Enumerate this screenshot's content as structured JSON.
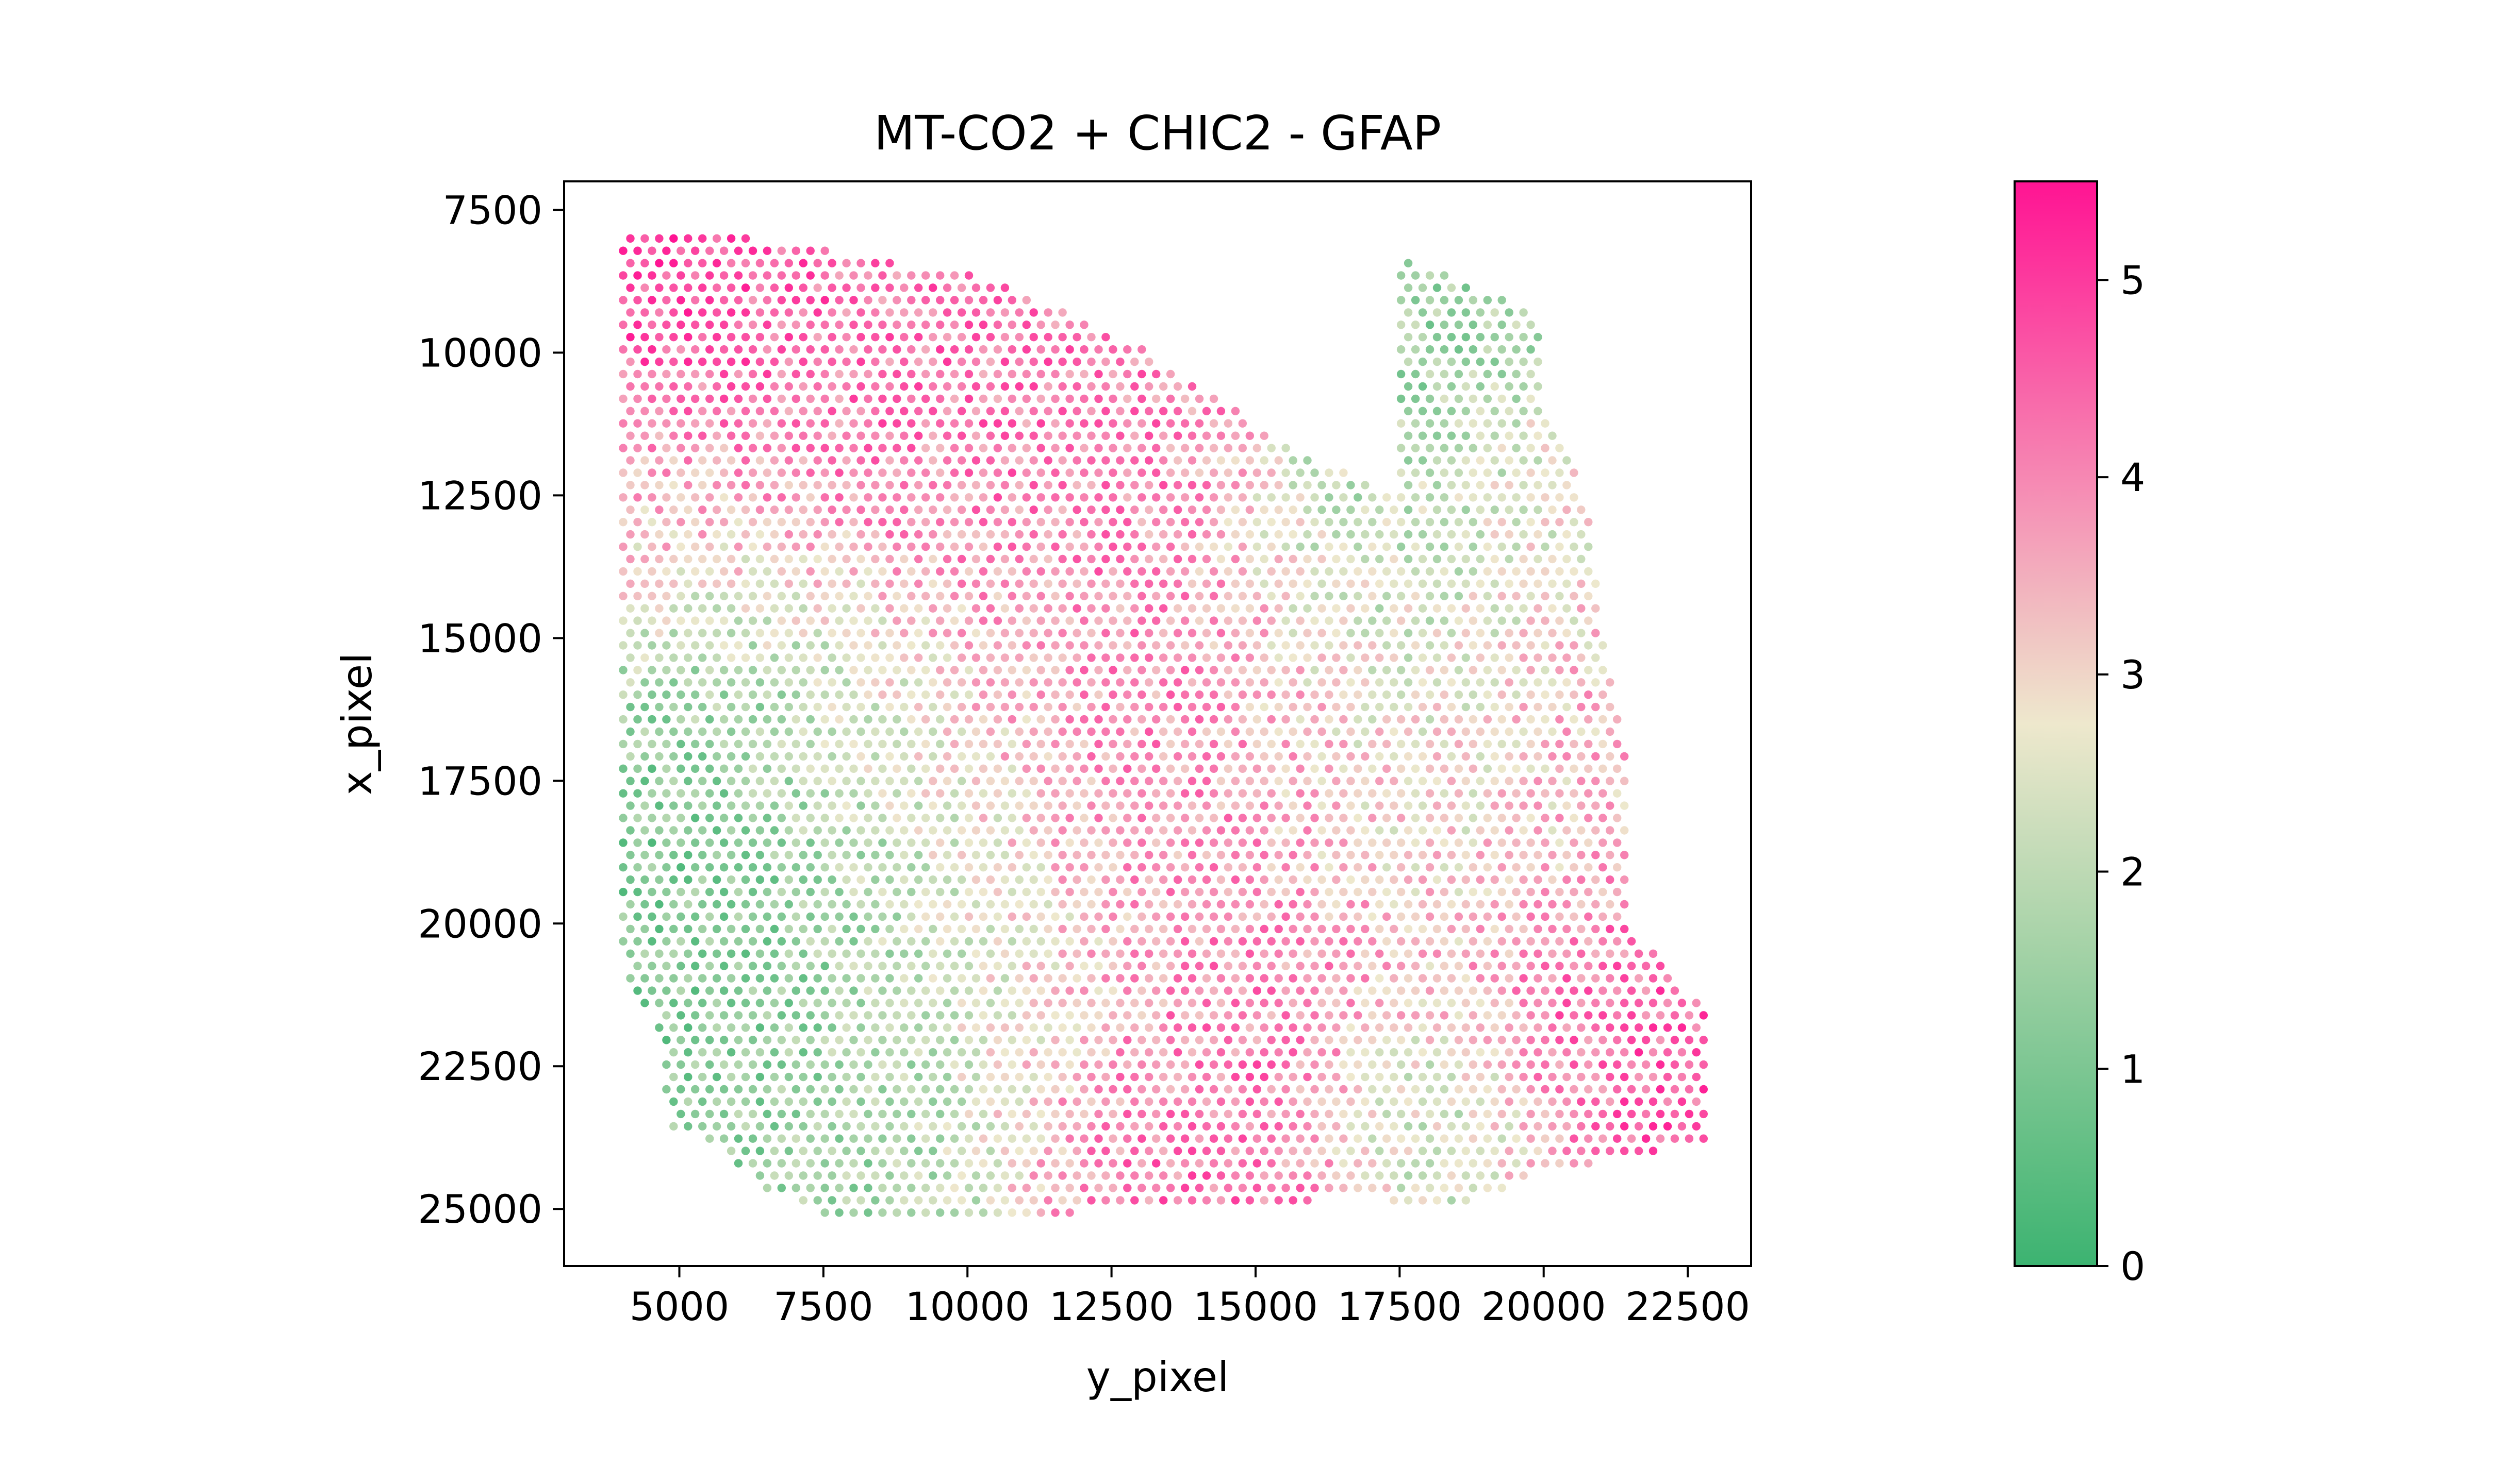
{
  "chart_data": {
    "type": "scatter",
    "title": "MT-CO2 + CHIC2 - GFAP",
    "xlabel": "y_pixel",
    "ylabel": "x_pixel",
    "xlim": [
      3000,
      23600
    ],
    "ylim": [
      26000,
      7000
    ],
    "y_inverted": true,
    "x_ticks": [
      5000,
      7500,
      10000,
      12500,
      15000,
      17500,
      20000,
      22500
    ],
    "x_tick_labels": [
      "5000",
      "7500",
      "10000",
      "12500",
      "15000",
      "17500",
      "20000",
      "22500"
    ],
    "y_ticks": [
      7500,
      10000,
      12500,
      15000,
      17500,
      20000,
      22500,
      25000
    ],
    "y_tick_labels": [
      "7500",
      "10000",
      "12500",
      "15000",
      "17500",
      "20000",
      "22500",
      "25000"
    ],
    "grid": false,
    "legend": "none",
    "colorbar": {
      "min": 0,
      "max": 5.5,
      "ticks": [
        0,
        1,
        2,
        3,
        4,
        5
      ],
      "tick_labels": [
        "0",
        "1",
        "2",
        "3",
        "4",
        "5"
      ],
      "colormap": [
        "#3cb371",
        "#eee8cd",
        "#ff1493"
      ],
      "colormap_midpoint": 2.75
    },
    "spot_grid": {
      "x_step": 250,
      "y_step": 216,
      "y_start": 8000,
      "outline": [
        [
          4000,
          8000
        ],
        [
          5800,
          7900
        ],
        [
          8000,
          8300
        ],
        [
          10000,
          8600
        ],
        [
          11500,
          9200
        ],
        [
          12800,
          9800
        ],
        [
          14100,
          10600
        ],
        [
          15200,
          11400
        ],
        [
          16300,
          12000
        ],
        [
          17100,
          12300
        ],
        [
          17500,
          12600
        ],
        [
          17400,
          8300
        ],
        [
          18300,
          8600
        ],
        [
          20000,
          9400
        ],
        [
          20000,
          10900
        ],
        [
          20400,
          11500
        ],
        [
          20800,
          13000
        ],
        [
          21000,
          14700
        ],
        [
          21400,
          16700
        ],
        [
          21500,
          20100
        ],
        [
          22100,
          20700
        ],
        [
          22800,
          21500
        ],
        [
          22800,
          23800
        ],
        [
          21600,
          24100
        ],
        [
          20000,
          24300
        ],
        [
          19100,
          24800
        ],
        [
          18500,
          24900
        ],
        [
          16300,
          24800
        ],
        [
          15200,
          25000
        ],
        [
          12500,
          25000
        ],
        [
          11000,
          25200
        ],
        [
          7900,
          25200
        ],
        [
          6500,
          24700
        ],
        [
          5700,
          24000
        ],
        [
          4800,
          23500
        ],
        [
          4600,
          21600
        ],
        [
          4200,
          21300
        ],
        [
          4000,
          20500
        ]
      ],
      "value_field": [
        {
          "x": 4800,
          "y": 8800,
          "v": 5.0,
          "r": 1600
        },
        {
          "x": 8000,
          "y": 9600,
          "v": 4.3,
          "r": 2200
        },
        {
          "x": 11500,
          "y": 10800,
          "v": 4.2,
          "r": 2000
        },
        {
          "x": 4300,
          "y": 13000,
          "v": 3.4,
          "r": 1800
        },
        {
          "x": 5600,
          "y": 17500,
          "v": 1.0,
          "r": 2200
        },
        {
          "x": 7200,
          "y": 21000,
          "v": 1.1,
          "r": 2400
        },
        {
          "x": 8500,
          "y": 24200,
          "v": 1.6,
          "r": 1600
        },
        {
          "x": 12000,
          "y": 15500,
          "v": 4.0,
          "r": 2500
        },
        {
          "x": 15500,
          "y": 18500,
          "v": 4.0,
          "r": 2500
        },
        {
          "x": 14500,
          "y": 23600,
          "v": 4.4,
          "r": 1800
        },
        {
          "x": 12800,
          "y": 24000,
          "v": 4.2,
          "r": 1500
        },
        {
          "x": 17800,
          "y": 10300,
          "v": 1.4,
          "r": 1200
        },
        {
          "x": 17200,
          "y": 13600,
          "v": 1.7,
          "r": 1600
        },
        {
          "x": 17800,
          "y": 17500,
          "v": 2.0,
          "r": 1700
        },
        {
          "x": 18000,
          "y": 23400,
          "v": 1.6,
          "r": 1300
        },
        {
          "x": 21500,
          "y": 22500,
          "v": 4.6,
          "r": 1800
        },
        {
          "x": 20800,
          "y": 17000,
          "v": 3.6,
          "r": 1800
        },
        {
          "x": 20000,
          "y": 13000,
          "v": 2.8,
          "r": 1500
        },
        {
          "x": 9000,
          "y": 17000,
          "v": 2.6,
          "r": 1800
        },
        {
          "x": 10600,
          "y": 21500,
          "v": 3.0,
          "r": 1800
        }
      ]
    }
  }
}
